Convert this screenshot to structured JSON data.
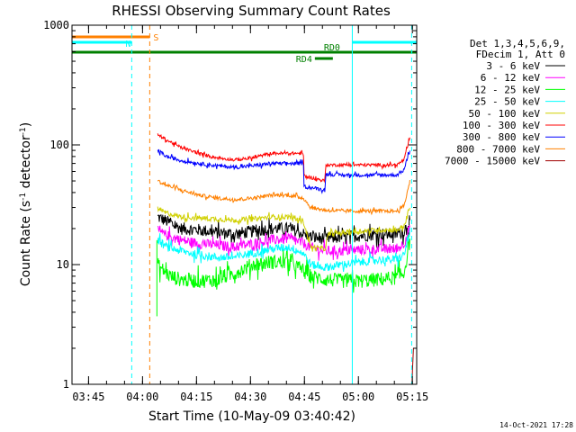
{
  "chart_data": {
    "type": "line",
    "title": "RHESSI Observing Summary Count Rates",
    "xlabel": "Start Time (10-May-09 03:40:42)",
    "ylabel_main": "Count Rate (s",
    "ylabel_sup1": "-1",
    "ylabel_mid": " detector",
    "ylabel_sup2": "-1",
    "ylabel_end": ")",
    "yscale": "log",
    "ylim": [
      1,
      1000
    ],
    "xlim_min": [
      -0.3,
      95.5
    ],
    "x_ticks": [
      {
        "t": 4.3,
        "label": "03:45"
      },
      {
        "t": 19.3,
        "label": "04:00"
      },
      {
        "t": 34.3,
        "label": "04:15"
      },
      {
        "t": 49.3,
        "label": "04:30"
      },
      {
        "t": 64.3,
        "label": "04:45"
      },
      {
        "t": 79.3,
        "label": "05:00"
      },
      {
        "t": 94.3,
        "label": "05:15"
      }
    ],
    "y_ticks": [
      {
        "v": 1,
        "label": "1"
      },
      {
        "v": 10,
        "label": "10"
      },
      {
        "v": 100,
        "label": "100"
      },
      {
        "v": 1000,
        "label": "1000"
      }
    ],
    "legend_header": [
      "Det 1,3,4,5,6,9,",
      "FDecim 1, Att 0"
    ],
    "series": [
      {
        "name": "3 - 6 keV",
        "color": "#000000",
        "noise": 0.12,
        "points": [
          [
            23.5,
            25
          ],
          [
            26,
            23
          ],
          [
            30,
            20
          ],
          [
            35,
            19.5
          ],
          [
            40,
            18.5
          ],
          [
            45,
            18
          ],
          [
            50,
            19
          ],
          [
            55,
            20
          ],
          [
            60,
            20
          ],
          [
            64,
            18
          ],
          [
            66,
            17
          ],
          [
            70,
            16.5
          ],
          [
            75,
            17
          ],
          [
            80,
            17.5
          ],
          [
            85,
            18
          ],
          [
            90,
            18
          ],
          [
            92,
            19
          ],
          [
            93.6,
            24
          ]
        ]
      },
      {
        "name": "6 - 12 keV",
        "color": "#ff00ff",
        "noise": 0.1,
        "points": [
          [
            23.5,
            19
          ],
          [
            26,
            17.5
          ],
          [
            30,
            16
          ],
          [
            35,
            15
          ],
          [
            40,
            14.5
          ],
          [
            45,
            14
          ],
          [
            50,
            15
          ],
          [
            55,
            16
          ],
          [
            60,
            16.5
          ],
          [
            64,
            15
          ],
          [
            66,
            14
          ],
          [
            70,
            13
          ],
          [
            75,
            13
          ],
          [
            80,
            13.3
          ],
          [
            85,
            13.5
          ],
          [
            90,
            13.5
          ],
          [
            92,
            15
          ],
          [
            93.6,
            21
          ]
        ]
      },
      {
        "name": "12 - 25 keV",
        "color": "#00ff00",
        "noise": 0.14,
        "points": [
          [
            23.5,
            10
          ],
          [
            25,
            9
          ],
          [
            27,
            8
          ],
          [
            30,
            7.5
          ],
          [
            35,
            7.3
          ],
          [
            40,
            7.5
          ],
          [
            45,
            8.5
          ],
          [
            50,
            10
          ],
          [
            55,
            10.5
          ],
          [
            60,
            10.5
          ],
          [
            64,
            9
          ],
          [
            66,
            8
          ],
          [
            70,
            7.5
          ],
          [
            75,
            7.3
          ],
          [
            80,
            7.3
          ],
          [
            85,
            7.5
          ],
          [
            90,
            7.8
          ],
          [
            92,
            8.5
          ],
          [
            93.6,
            16
          ]
        ]
      },
      {
        "name": "25 - 50 keV",
        "color": "#00ffff",
        "noise": 0.08,
        "points": [
          [
            23.5,
            16
          ],
          [
            26,
            14
          ],
          [
            30,
            13
          ],
          [
            35,
            12
          ],
          [
            40,
            11.5
          ],
          [
            45,
            11.5
          ],
          [
            50,
            12.5
          ],
          [
            55,
            13.5
          ],
          [
            60,
            14
          ],
          [
            64,
            12.5
          ],
          [
            66,
            10
          ],
          [
            70,
            9.5
          ],
          [
            75,
            10
          ],
          [
            80,
            10.5
          ],
          [
            85,
            11
          ],
          [
            90,
            11
          ],
          [
            92,
            12
          ],
          [
            93.6,
            19
          ]
        ]
      },
      {
        "name": "50 - 100 keV",
        "color": "#d0d000",
        "noise": 0.05,
        "points": [
          [
            23.5,
            29
          ],
          [
            26,
            27
          ],
          [
            30,
            25
          ],
          [
            35,
            24.5
          ],
          [
            40,
            24
          ],
          [
            45,
            23.5
          ],
          [
            50,
            24
          ],
          [
            55,
            25
          ],
          [
            60,
            25
          ],
          [
            64,
            23
          ],
          [
            66,
            14
          ],
          [
            70,
            13.5
          ],
          [
            71,
            18
          ],
          [
            75,
            18.5
          ],
          [
            80,
            19
          ],
          [
            85,
            19.5
          ],
          [
            90,
            19.5
          ],
          [
            92,
            21
          ],
          [
            93.6,
            30
          ]
        ]
      },
      {
        "name": "100 - 300 keV",
        "color": "#ff0000",
        "noise": 0.03,
        "points": [
          [
            23.5,
            122
          ],
          [
            26,
            110
          ],
          [
            30,
            95
          ],
          [
            35,
            85
          ],
          [
            40,
            78
          ],
          [
            45,
            75
          ],
          [
            50,
            78
          ],
          [
            55,
            85
          ],
          [
            60,
            85
          ],
          [
            64,
            85
          ],
          [
            64.2,
            55
          ],
          [
            70,
            50
          ],
          [
            70.2,
            68
          ],
          [
            75,
            68
          ],
          [
            80,
            68
          ],
          [
            85,
            68
          ],
          [
            90,
            68
          ],
          [
            92,
            75
          ],
          [
            93.6,
            115
          ]
        ]
      },
      {
        "name": "300 - 800 keV",
        "color": "#0000ff",
        "noise": 0.035,
        "points": [
          [
            23.5,
            90
          ],
          [
            26,
            80
          ],
          [
            30,
            74
          ],
          [
            35,
            70
          ],
          [
            40,
            67
          ],
          [
            45,
            65
          ],
          [
            50,
            67
          ],
          [
            55,
            70
          ],
          [
            60,
            70
          ],
          [
            64,
            70
          ],
          [
            64.2,
            45
          ],
          [
            70,
            42
          ],
          [
            70.2,
            57
          ],
          [
            75,
            56
          ],
          [
            80,
            56
          ],
          [
            85,
            56
          ],
          [
            90,
            56
          ],
          [
            92,
            62
          ],
          [
            93.6,
            92
          ]
        ]
      },
      {
        "name": "800 - 7000 keV",
        "color": "#ff8000",
        "noise": 0.035,
        "points": [
          [
            23.5,
            50
          ],
          [
            26,
            46
          ],
          [
            30,
            42
          ],
          [
            35,
            38
          ],
          [
            40,
            36
          ],
          [
            45,
            35
          ],
          [
            50,
            36
          ],
          [
            55,
            38
          ],
          [
            60,
            38
          ],
          [
            64,
            36
          ],
          [
            66,
            30
          ],
          [
            70,
            28.5
          ],
          [
            75,
            28
          ],
          [
            80,
            28
          ],
          [
            85,
            28
          ],
          [
            90,
            28
          ],
          [
            92,
            31
          ],
          [
            93.6,
            50
          ]
        ]
      },
      {
        "name": "7000 - 15000 keV",
        "color": "#a00000",
        "noise": 0.0,
        "points": [
          [
            94.2,
            1.0
          ],
          [
            94.4,
            1.5
          ],
          [
            94.6,
            2.0
          ]
        ]
      }
    ],
    "flag_bars": [
      {
        "id": "S",
        "label": "S",
        "color": "#ff8000",
        "y": 41,
        "t0": -0.3,
        "t1": 21.3
      },
      {
        "id": "N1",
        "label": "N",
        "color": "#00ffff",
        "y": 47,
        "t0": -0.3,
        "t1": 16.3
      },
      {
        "id": "N2",
        "label": "",
        "color": "#00ffff",
        "y": 47,
        "t0": 77.6,
        "t1": 95.5
      },
      {
        "id": "RD0",
        "label": "RD0",
        "color": "#008000",
        "y": 58,
        "t0": -0.3,
        "t1": 95.5
      },
      {
        "id": "RD4",
        "label": "RD4",
        "color": "#008000",
        "y": 65,
        "t0": 67.2,
        "t1": 72.2
      }
    ],
    "event_lines": [
      {
        "t": -0.3,
        "color": "#00ffff",
        "style": "solid"
      },
      {
        "t": 16.3,
        "color": "#00ffff",
        "style": "dashed"
      },
      {
        "t": 21.3,
        "color": "#ff8000",
        "style": "dashed"
      },
      {
        "t": 77.6,
        "color": "#00ffff",
        "style": "solid"
      },
      {
        "t": 94.1,
        "color": "#00ffff",
        "style": "dashed"
      }
    ]
  },
  "footer": {
    "date_stamp": "14-Oct-2021 17:28"
  }
}
